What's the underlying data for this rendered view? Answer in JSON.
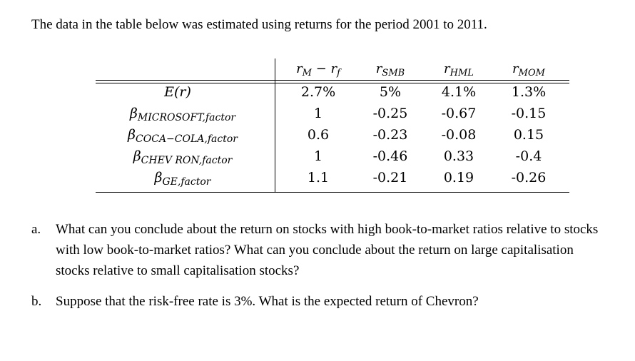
{
  "intro": "The data in the table below was estimated using returns for the period 2001 to 2011.",
  "table": {
    "headers": [
      {
        "main": "r",
        "sub": "M",
        "rest": " − r",
        "sub2": "f"
      },
      {
        "main": "r",
        "sub": "SMB"
      },
      {
        "main": "r",
        "sub": "HML"
      },
      {
        "main": "r",
        "sub": "MOM"
      }
    ],
    "rows": [
      {
        "label": {
          "main": "E(r)",
          "sub": ""
        },
        "values": [
          "2.7%",
          "5%",
          "4.1%",
          "1.3%"
        ]
      },
      {
        "label": {
          "main": "β",
          "sub": "MICROSOFT,factor"
        },
        "values": [
          "1",
          "-0.25",
          "-0.67",
          "-0.15"
        ]
      },
      {
        "label": {
          "main": "β",
          "sub": "COCA−COLA,factor"
        },
        "values": [
          "0.6",
          "-0.23",
          "-0.08",
          "0.15"
        ]
      },
      {
        "label": {
          "main": "β",
          "sub": "CHEV RON,factor"
        },
        "values": [
          "1",
          "-0.46",
          "0.33",
          "-0.4"
        ]
      },
      {
        "label": {
          "main": "β",
          "sub": "GE,factor"
        },
        "values": [
          "1.1",
          "-0.21",
          "0.19",
          "-0.26"
        ]
      }
    ]
  },
  "questions": [
    {
      "label": "a.",
      "text": "What can you conclude about the return on stocks with high book-to-market ratios relative to stocks with low book-to-market ratios? What can you conclude about the return on large capitalisation stocks relative to small capitalisation stocks?"
    },
    {
      "label": "b.",
      "text": "Suppose that the risk-free rate is 3%. What is the expected return of Chevron?"
    }
  ]
}
